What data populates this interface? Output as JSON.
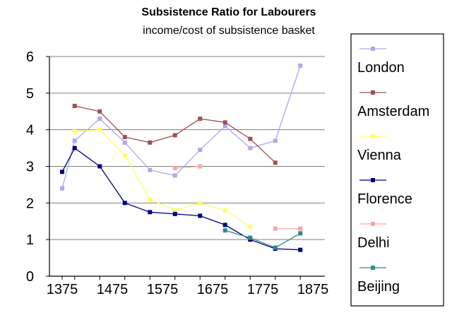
{
  "chart_data": {
    "type": "line",
    "title": "Subsistence Ratio for Labourers",
    "subtitle": "income/cost of subsistence basket",
    "xlabel": "",
    "ylabel": "",
    "x": [
      1375,
      1400,
      1450,
      1500,
      1550,
      1600,
      1650,
      1700,
      1750,
      1800,
      1850
    ],
    "x_tick_labels": [
      "1375",
      "1475",
      "1575",
      "1675",
      "1775",
      "1875"
    ],
    "x_tick_values": [
      1375,
      1475,
      1575,
      1675,
      1775,
      1875
    ],
    "xlim": [
      1375,
      1875
    ],
    "ylim": [
      0,
      6
    ],
    "y_ticks": [
      0,
      1,
      2,
      3,
      4,
      5,
      6
    ],
    "grid": true,
    "legend_position": "right",
    "series": [
      {
        "name": "London",
        "color": "#aaaaee",
        "marker": "square",
        "values": [
          2.4,
          3.7,
          4.3,
          3.65,
          2.9,
          2.75,
          3.45,
          4.1,
          3.5,
          3.7,
          5.75
        ]
      },
      {
        "name": "Amsterdam",
        "color": "#a05050",
        "marker": "square",
        "values": [
          null,
          4.65,
          4.5,
          3.8,
          3.65,
          3.85,
          4.3,
          4.2,
          3.75,
          3.1,
          null
        ]
      },
      {
        "name": "Vienna",
        "color": "#ffff66",
        "marker": "square",
        "values": [
          null,
          3.95,
          4.0,
          3.3,
          2.1,
          1.8,
          2.0,
          1.8,
          1.35,
          null,
          null
        ]
      },
      {
        "name": "Florence",
        "color": "#000080",
        "marker": "square",
        "values": [
          2.85,
          3.5,
          3.0,
          2.0,
          1.75,
          1.7,
          1.65,
          1.4,
          1.0,
          0.75,
          0.72
        ]
      },
      {
        "name": "Delhi",
        "color": "#f4a8a8",
        "marker": "square",
        "values": [
          null,
          null,
          null,
          null,
          null,
          2.95,
          3.0,
          null,
          null,
          1.3,
          1.3
        ]
      },
      {
        "name": "Beijing",
        "color": "#2e8b8b",
        "marker": "square",
        "values": [
          null,
          null,
          null,
          null,
          null,
          null,
          null,
          1.25,
          1.05,
          0.78,
          1.17
        ]
      }
    ]
  }
}
